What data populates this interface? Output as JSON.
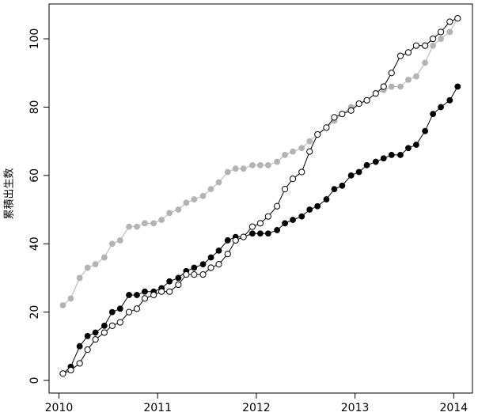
{
  "chart_data": {
    "type": "line",
    "ylabel": "累積出生数",
    "x": [
      2010.04,
      2010.12,
      2010.21,
      2010.29,
      2010.37,
      2010.46,
      2010.54,
      2010.62,
      2010.71,
      2010.79,
      2010.87,
      2010.96,
      2011.04,
      2011.12,
      2011.21,
      2011.29,
      2011.37,
      2011.46,
      2011.54,
      2011.62,
      2011.71,
      2011.79,
      2011.87,
      2011.96,
      2012.04,
      2012.12,
      2012.21,
      2012.29,
      2012.37,
      2012.46,
      2012.54,
      2012.62,
      2012.71,
      2012.79,
      2012.87,
      2012.96,
      2013.04,
      2013.12,
      2013.21,
      2013.29,
      2013.37,
      2013.46,
      2013.54,
      2013.62,
      2013.71,
      2013.79,
      2013.87,
      2013.96,
      2014.04
    ],
    "series": [
      {
        "color": "#b3b3b3",
        "marker": "filled",
        "values": [
          22,
          24,
          30,
          33,
          34,
          36,
          40,
          41,
          45,
          45,
          46,
          46,
          47,
          49,
          50,
          52,
          53,
          54,
          56,
          58,
          61,
          62,
          62,
          63,
          63,
          63,
          64,
          66,
          67,
          68,
          70,
          72,
          74,
          76,
          78,
          80,
          81,
          82,
          84,
          85,
          86,
          86,
          88,
          89,
          93,
          98,
          100,
          102,
          106
        ]
      },
      {
        "color": "#000000",
        "marker": "filled",
        "values": [
          2,
          4,
          10,
          13,
          14,
          16,
          20,
          21,
          25,
          25,
          26,
          26,
          27,
          29,
          30,
          32,
          33,
          34,
          36,
          38,
          41,
          42,
          42,
          43,
          43,
          43,
          44,
          46,
          47,
          48,
          50,
          51,
          53,
          56,
          57,
          60,
          61,
          63,
          64,
          65,
          66,
          66,
          68,
          69,
          73,
          78,
          80,
          82,
          86
        ]
      },
      {
        "color": "#000000",
        "marker": "open",
        "values": [
          2,
          3,
          5,
          9,
          12,
          14,
          16,
          17,
          20,
          21,
          24,
          25,
          26,
          26,
          28,
          31,
          31,
          31,
          33,
          34,
          37,
          41,
          42,
          45,
          46,
          48,
          51,
          56,
          59,
          61,
          67,
          72,
          74,
          77,
          78,
          79,
          81,
          82,
          84,
          86,
          90,
          95,
          96,
          98,
          98,
          100,
          102,
          105,
          106
        ]
      }
    ],
    "xlim": [
      2009.9,
      2014.19
    ],
    "xticks": [
      2010,
      2011,
      2012,
      2013,
      2014
    ],
    "ylim": [
      -3.7,
      110.2
    ],
    "yticks": [
      0,
      20,
      40,
      60,
      80,
      100
    ]
  }
}
